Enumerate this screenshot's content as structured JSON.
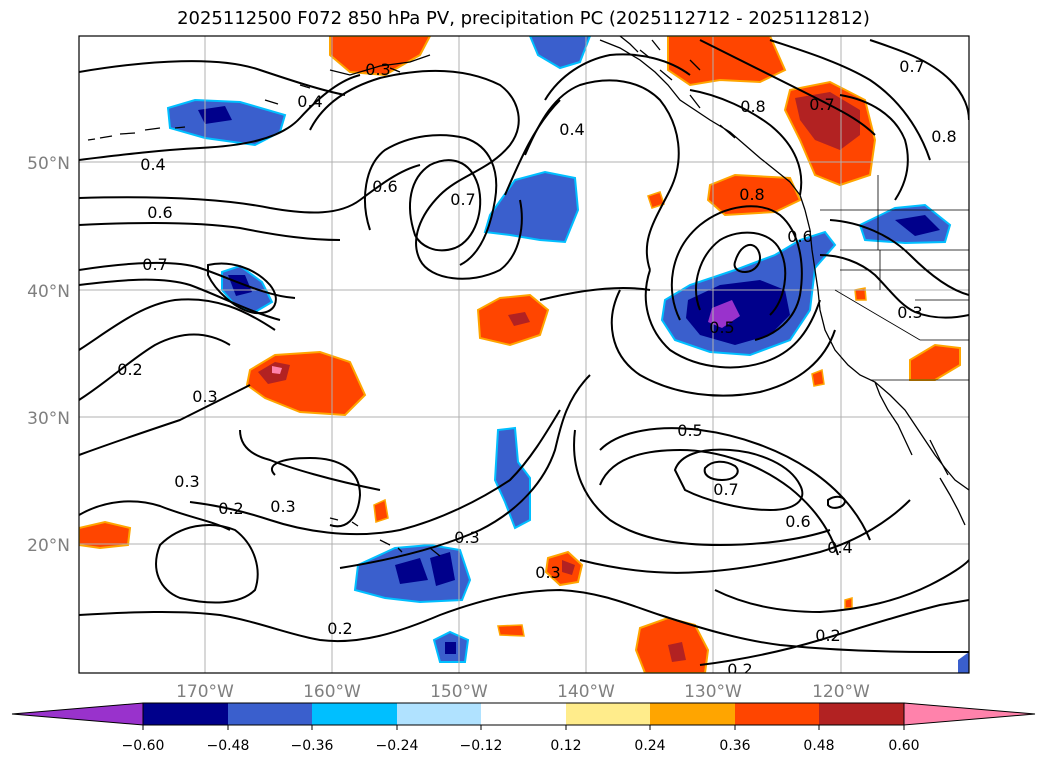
{
  "title": "2025112500 F072 850 hPa PV, precipitation PC (2025112712 - 2025112812)",
  "map": {
    "lat_labels": [
      "50°N",
      "40°N",
      "30°N",
      "20°N"
    ],
    "lon_labels": [
      "170°W",
      "160°W",
      "150°W",
      "140°W",
      "130°W",
      "120°W"
    ],
    "contour_labels": [
      "0.4",
      "0.3",
      "0.4",
      "0.6",
      "0.7",
      "0.4",
      "0.6",
      "0.7",
      "0.8",
      "0.7",
      "0.8",
      "0.7",
      "0.8",
      "0.6",
      "0.5",
      "0.3",
      "0.2",
      "0.3",
      "0.3",
      "0.2",
      "0.3",
      "0.3",
      "0.3",
      "0.5",
      "0.7",
      "0.6",
      "0.4",
      "0.2",
      "0.2",
      "0.2"
    ],
    "colors": {
      "land_outline": "#000000",
      "grid": "#b0b0b0",
      "contour": "#000000"
    }
  },
  "colorbar": {
    "ticks": [
      "−0.60",
      "−0.48",
      "−0.36",
      "−0.24",
      "−0.12",
      "0.12",
      "0.24",
      "0.36",
      "0.48",
      "0.60"
    ],
    "colors": [
      "#9932cc",
      "#00008b",
      "#3a5fcd",
      "#00bfff",
      "#b0e2ff",
      "#ffffff",
      "#ffec8b",
      "#ffa500",
      "#ff4500",
      "#b22222",
      "#ff82ab"
    ]
  }
}
